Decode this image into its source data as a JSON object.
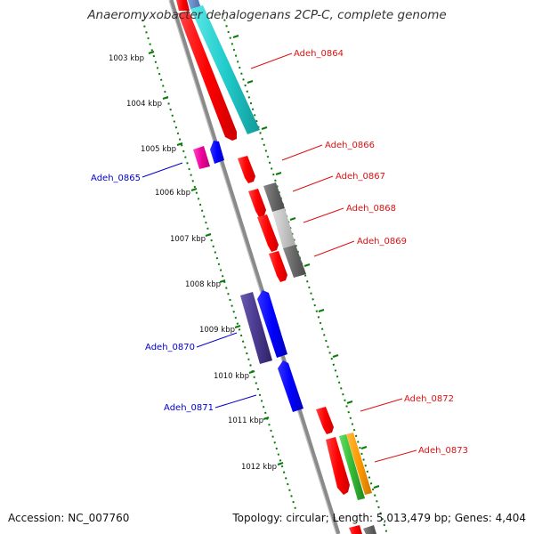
{
  "title": "Anaeromyxobacter dehalogenans 2CP-C, complete genome",
  "footer": {
    "accession": "Accession: NC_007760",
    "info": "Topology: circular; Length: 5,013,479 bp; Genes: 4,404"
  },
  "colors": {
    "forward_label": "#dd1111",
    "reverse_label": "#0000cc",
    "tick": "#0a7a0a",
    "backbone": "#888888"
  },
  "kbp_labels": [
    "1003 kbp",
    "1004 kbp",
    "1005 kbp",
    "1006 kbp",
    "1007 kbp",
    "1008 kbp",
    "1009 kbp",
    "1010 kbp",
    "1011 kbp",
    "1012 kbp"
  ],
  "genes": [
    {
      "label": "Adeh_0864",
      "strand": "forward",
      "color": "#dd1111"
    },
    {
      "label": "Adeh_0865",
      "strand": "reverse",
      "color": "#0000cc"
    },
    {
      "label": "Adeh_0866",
      "strand": "forward",
      "color": "#dd1111"
    },
    {
      "label": "Adeh_0867",
      "strand": "forward",
      "color": "#dd1111"
    },
    {
      "label": "Adeh_0868",
      "strand": "forward",
      "color": "#dd1111"
    },
    {
      "label": "Adeh_0869",
      "strand": "forward",
      "color": "#dd1111"
    },
    {
      "label": "Adeh_0870",
      "strand": "reverse",
      "color": "#0000cc"
    },
    {
      "label": "Adeh_0871",
      "strand": "reverse",
      "color": "#0000cc"
    },
    {
      "label": "Adeh_0872",
      "strand": "forward",
      "color": "#dd1111"
    },
    {
      "label": "Adeh_0873",
      "strand": "forward",
      "color": "#dd1111"
    }
  ]
}
